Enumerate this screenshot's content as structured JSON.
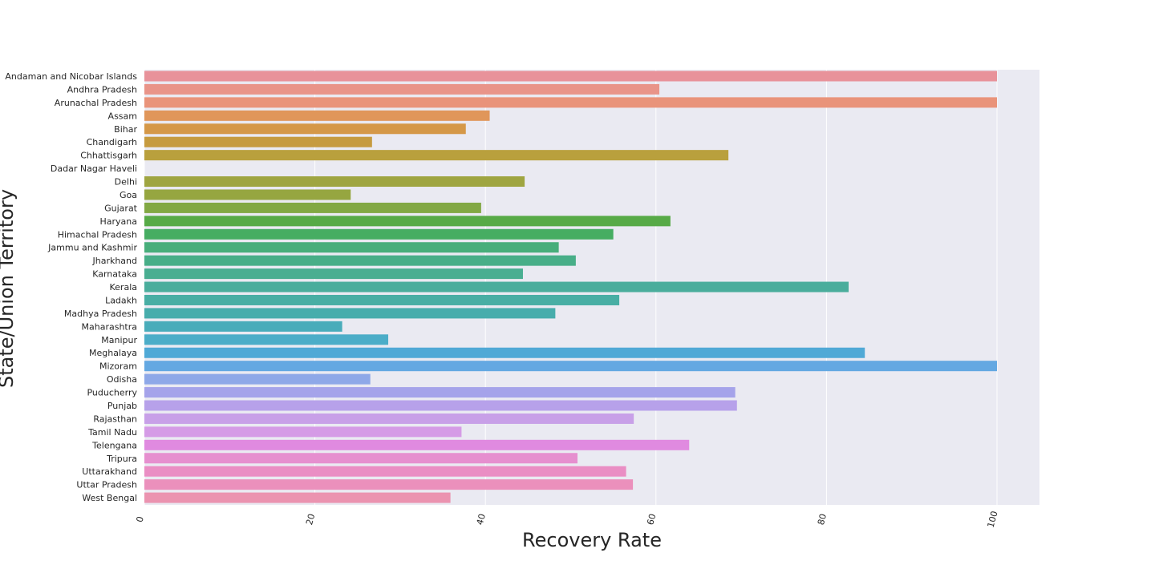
{
  "chart_data": {
    "type": "bar",
    "orientation": "horizontal",
    "title": "",
    "xlabel": "Recovery Rate",
    "ylabel": "State/Union Territory",
    "xlim": [
      0,
      105
    ],
    "xticks": [
      0,
      20,
      40,
      60,
      80,
      100
    ],
    "grid": true,
    "legend": "none",
    "background": "#eaeaf2",
    "categories": [
      "Andaman and Nicobar Islands",
      "Andhra Pradesh",
      "Arunachal Pradesh",
      "Assam",
      "Bihar",
      "Chandigarh",
      "Chhattisgarh",
      "Dadar Nagar Haveli",
      "Delhi",
      "Goa",
      "Gujarat",
      "Haryana",
      "Himachal Pradesh",
      "Jammu and Kashmir",
      "Jharkhand",
      "Karnataka",
      "Kerala",
      "Ladakh",
      "Madhya Pradesh",
      "Maharashtra",
      "Manipur",
      "Meghalaya",
      "Mizoram",
      "Odisha",
      "Puducherry",
      "Punjab",
      "Rajasthan",
      "Tamil Nadu",
      "Telengana",
      "Tripura",
      "Uttarakhand",
      "Uttar Pradesh",
      "West Bengal"
    ],
    "values": [
      100,
      60.4,
      100,
      40.5,
      37.7,
      26.7,
      68.5,
      0,
      44.6,
      24.2,
      39.5,
      61.7,
      55.0,
      48.6,
      50.6,
      44.4,
      82.6,
      55.7,
      48.2,
      23.2,
      28.6,
      84.5,
      100,
      26.5,
      69.3,
      69.5,
      57.4,
      37.2,
      63.9,
      50.8,
      56.5,
      57.3,
      35.9
    ],
    "colors": [
      "#e8929a",
      "#e99489",
      "#e9937a",
      "#e0965a",
      "#d59848",
      "#c69b3f",
      "#b9a03d",
      "#aea23e",
      "#9fa541",
      "#96a640",
      "#82a844",
      "#57aa47",
      "#46ad62",
      "#48ae7b",
      "#48ae88",
      "#49ae91",
      "#4aad9c",
      "#48aea4",
      "#47adac",
      "#49acba",
      "#4cadc8",
      "#50a9d6",
      "#64a8e2",
      "#8ea8e8",
      "#a5a3ea",
      "#b7a1ea",
      "#c8a0e8",
      "#d59be6",
      "#e08ae0",
      "#e68fcf",
      "#ea8ec4",
      "#eb90bc",
      "#eb93b0"
    ]
  }
}
